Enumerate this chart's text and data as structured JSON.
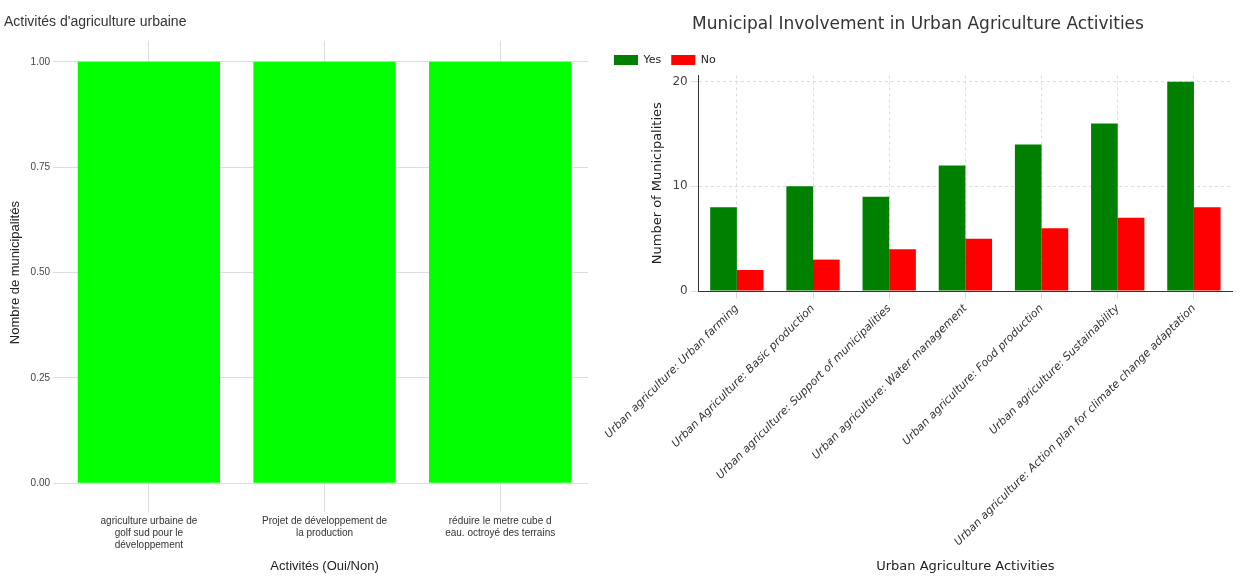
{
  "chart_data": [
    {
      "type": "bar",
      "title": "Activités d'agriculture urbaine",
      "xlabel": "Activités (Oui/Non)",
      "ylabel": "Nombre de municipalités",
      "categories": [
        "agriculture urbaine de golf sud pour le développement",
        "Projet de développement de la production",
        "réduire le metre cube d eau. octroyé des terrains"
      ],
      "values": [
        1,
        1,
        1
      ],
      "color": "#00ff00",
      "ylim": [
        -0.05,
        1.05
      ],
      "yticks": [
        {
          "value": 0,
          "label": "0.00"
        },
        {
          "value": 0.25,
          "label": "0.25"
        },
        {
          "value": 0.5,
          "label": "0.50"
        },
        {
          "value": 0.75,
          "label": "0.75"
        },
        {
          "value": 1,
          "label": "1.00"
        }
      ],
      "grid": true
    },
    {
      "type": "bar",
      "title": "Municipal Involvement in Urban Agriculture Activities",
      "xlabel": "Urban Agriculture Activities",
      "ylabel": "Number of Municipalities",
      "categories": [
        "Urban agriculture: Urban farming",
        "Urban Agriculture: Basic production",
        "Urban agriculture: Support of municipalities",
        "Urban agriculture: Water management",
        "Urban agriculture: Food production",
        "Urban agriculture: Sustainability",
        "Urban agriculture: Action plan for climate change adaptation"
      ],
      "series": [
        {
          "name": "Yes",
          "color": "#008000",
          "values": [
            8,
            10,
            9,
            12,
            14,
            16,
            20
          ]
        },
        {
          "name": "No",
          "color": "#ff0000",
          "values": [
            2,
            3,
            4,
            5,
            6,
            7,
            8
          ]
        }
      ],
      "ylim": [
        0,
        20.6
      ],
      "yticks": [
        0,
        10,
        20
      ],
      "grid": true,
      "legend": "top left"
    }
  ]
}
